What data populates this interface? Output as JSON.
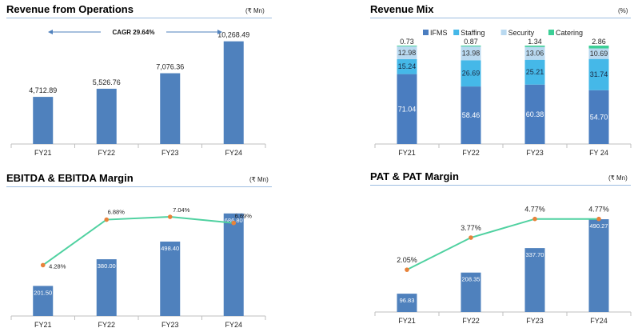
{
  "colors": {
    "bar": "#4f81bd",
    "ifms": "#4a7dc0",
    "staffing": "#45b8e8",
    "security": "#b9d9f0",
    "catering": "#3ccf96",
    "line": "#4fd1a0",
    "marker": "#e8823a",
    "axis": "#bfbfbf",
    "header_line": "#9bbbe0"
  },
  "panels": {
    "revenue": {
      "title": "Revenue from Operations",
      "unit": "(₹ Mn)"
    },
    "mix": {
      "title": "Revenue Mix",
      "unit": "(%)"
    },
    "ebitda": {
      "title": "EBITDA & EBITDA Margin",
      "unit": "(₹ Mn)"
    },
    "pat": {
      "title": "PAT & PAT Margin",
      "unit": "(₹ Mn)"
    }
  },
  "chart_data": [
    {
      "id": "revenue",
      "type": "bar",
      "title": "Revenue from Operations",
      "unit": "(₹ Mn)",
      "categories": [
        "FY21",
        "FY22",
        "FY23",
        "FY24"
      ],
      "values": [
        4712.89,
        5526.76,
        7076.36,
        10268.49
      ],
      "labels": [
        "4,712.89",
        "5,526.76",
        "7,076.36",
        "10,268.49"
      ],
      "annotation": "CAGR 29.64%",
      "ylim": [
        0,
        12000
      ]
    },
    {
      "id": "mix",
      "type": "bar",
      "stacked": true,
      "title": "Revenue Mix",
      "unit": "(%)",
      "categories": [
        "FY21",
        "FY22",
        "FY23",
        "FY 24"
      ],
      "series": [
        {
          "name": "IFMS",
          "values": [
            71.04,
            58.46,
            60.38,
            54.7
          ],
          "labels": [
            "71.04",
            "58.46",
            "60.38",
            "54.70"
          ]
        },
        {
          "name": "Staffing",
          "values": [
            15.24,
            26.69,
            25.21,
            31.74
          ],
          "labels": [
            "15.24",
            "26.69",
            "25.21",
            "31.74"
          ]
        },
        {
          "name": "Security",
          "values": [
            12.98,
            13.98,
            13.06,
            10.69
          ],
          "labels": [
            "12.98",
            "13.98",
            "13.06",
            "10.69"
          ]
        },
        {
          "name": "Catering",
          "values": [
            0.73,
            0.87,
            1.34,
            2.86
          ],
          "labels": [
            "0.73",
            "0.87",
            "1.34",
            "2.86"
          ]
        }
      ],
      "legend": "top",
      "ylim": [
        0,
        100
      ]
    },
    {
      "id": "ebitda",
      "type": "bar",
      "title": "EBITDA & EBITDA Margin",
      "unit": "(₹ Mn)",
      "categories": [
        "FY21",
        "FY22",
        "FY23",
        "FY24"
      ],
      "bars": {
        "values": [
          201.5,
          380.0,
          498.4,
          686.8
        ],
        "labels": [
          "201.50",
          "380.00",
          "498.40",
          "686.80"
        ]
      },
      "line": {
        "values": [
          4.28,
          6.88,
          7.04,
          6.69
        ],
        "labels": [
          "4.28%",
          "6.88%",
          "7.04%",
          "6.69%"
        ]
      },
      "ylim_bars": [
        0,
        750
      ],
      "ylim_line": [
        0,
        7.5
      ]
    },
    {
      "id": "pat",
      "type": "bar",
      "title": "PAT & PAT Margin",
      "unit": "(₹ Mn)",
      "categories": [
        "FY21",
        "FY22",
        "FY23",
        "FY24"
      ],
      "bars": {
        "values": [
          96.83,
          208.35,
          337.7,
          490.27
        ],
        "labels": [
          "96.83",
          "208.35",
          "337.70",
          "490.27"
        ]
      },
      "line": {
        "values": [
          2.05,
          3.77,
          4.77,
          4.77
        ],
        "labels": [
          "2.05%",
          "3.77%",
          "4.77%",
          "4.77%"
        ]
      },
      "ylim_bars": [
        0,
        520
      ],
      "ylim_line": [
        0,
        5.4
      ]
    }
  ]
}
